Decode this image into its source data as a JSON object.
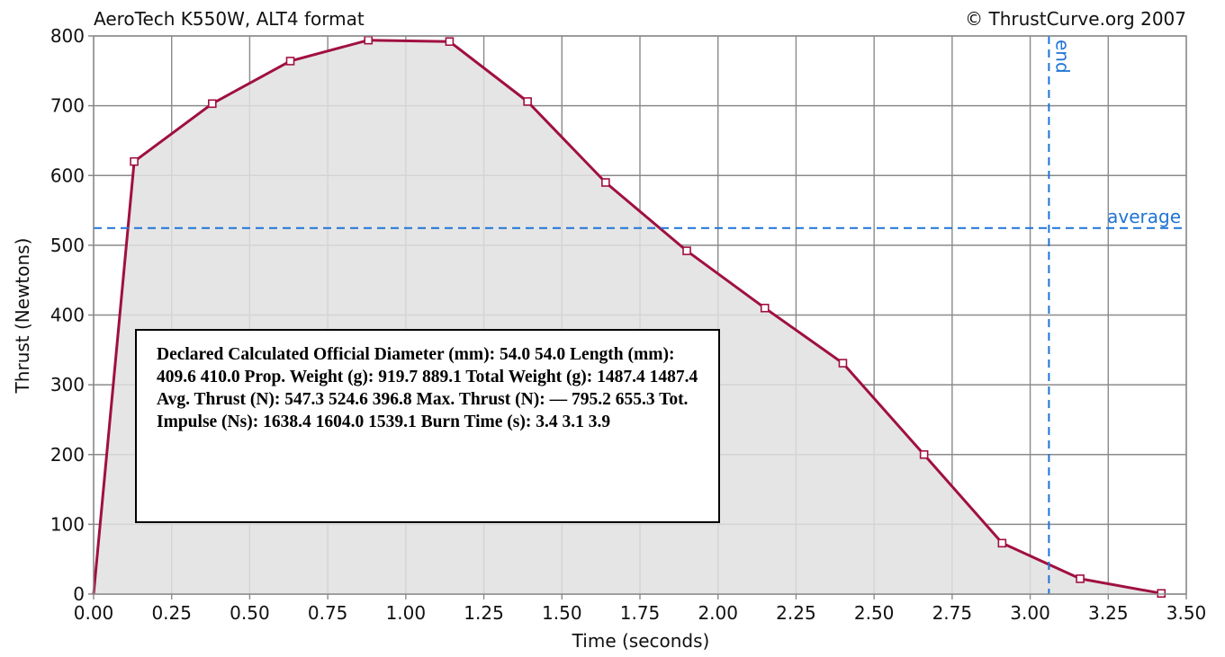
{
  "chart_data": {
    "type": "line",
    "title": "AeroTech K550W, ALT4 format",
    "credit": "© ThrustCurve.org 2007",
    "xlabel": "Time (seconds)",
    "ylabel": "Thrust (Newtons)",
    "xlim": [
      0,
      3.5
    ],
    "ylim": [
      0,
      800
    ],
    "x_ticks": [
      "0.00",
      "0.25",
      "0.50",
      "0.75",
      "1.00",
      "1.25",
      "1.50",
      "1.75",
      "2.00",
      "2.25",
      "2.50",
      "2.75",
      "3.00",
      "3.25",
      "3.50"
    ],
    "y_ticks": [
      "0",
      "100",
      "200",
      "300",
      "400",
      "500",
      "600",
      "700",
      "800"
    ],
    "grid": true,
    "series": [
      {
        "color": "#a0103f",
        "fill": "#e0e0e0",
        "x": [
          0.0,
          0.13,
          0.38,
          0.63,
          0.88,
          1.14,
          1.39,
          1.64,
          1.9,
          2.15,
          2.4,
          2.66,
          2.91,
          3.16,
          3.42
        ],
        "y": [
          0,
          620,
          703,
          764,
          794,
          792,
          706,
          590,
          492,
          410,
          331,
          200,
          73,
          22,
          1
        ]
      }
    ],
    "reference_lines": {
      "average": {
        "label": "average",
        "value": 524.6,
        "color": "#1f74d6"
      },
      "end": {
        "label": "end",
        "value": 3.06,
        "color": "#1f74d6"
      }
    }
  },
  "stats_box": {
    "text": "Declared Calculated Official Diameter (mm): 54.0 54.0 Length (mm): 409.6 410.0 Prop. Weight (g): 919.7 889.1 Total Weight (g): 1487.4 1487.4 Avg. Thrust (N): 547.3 524.6 396.8 Max. Thrust (N): — 795.2 655.3 Tot. Impulse (Ns): 1638.4 1604.0 1539.1 Burn Time (s): 3.4 3.1 3.9"
  }
}
